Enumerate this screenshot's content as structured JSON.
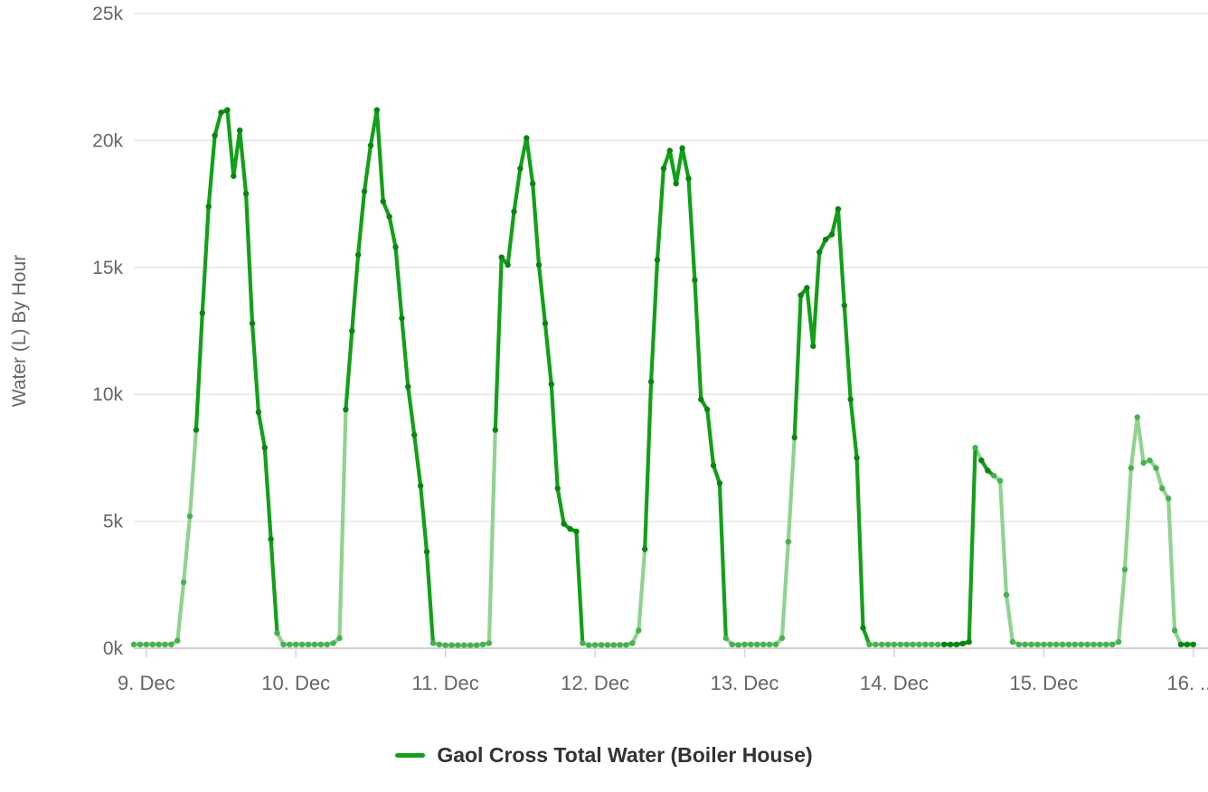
{
  "page": {
    "background": "#ffffff"
  },
  "chart_data": {
    "type": "line",
    "title": "",
    "xlabel": "",
    "ylabel": "Water (L) By Hour",
    "ylim": [
      0,
      25000
    ],
    "y_tick_values": [
      0,
      5000,
      10000,
      15000,
      20000,
      25000
    ],
    "y_tick_labels": [
      "0k",
      "5k",
      "10k",
      "15k",
      "20k",
      "25k"
    ],
    "x_tick_labels": [
      "9. Dec",
      "10. Dec",
      "11. Dec",
      "12. Dec",
      "13. Dec",
      "14. Dec",
      "15. Dec",
      "16. ..."
    ],
    "grid": "horizontal-only",
    "legend_position": "bottom-center",
    "colors": {
      "line_dark": "#12a019",
      "line_light": "#8fd38f",
      "marker_dark": "#0a8510",
      "marker_light": "#46b24e",
      "gridline": "#e6e6e6",
      "axis_line": "#cfcfcf",
      "tick_mark": "#ccd6eb",
      "axis_text": "#666666",
      "legend_text": "#333333"
    },
    "series": [
      {
        "name": "Gaol Cross Total Water (Boiler House)",
        "interval_hours": 1,
        "lead_values": [
          150,
          150
        ],
        "lead_shades": "ll",
        "days": [
          {
            "label": "9. Dec",
            "values": [
              150,
              150,
              150,
              150,
              150,
              300,
              2600,
              5200,
              8600,
              13200,
              17400,
              20200,
              21100,
              21200,
              18600,
              20400,
              17900,
              12800,
              9300,
              7900,
              4300,
              600,
              150,
              150
            ],
            "shades": "lllllllldddddddddddddlll"
          },
          {
            "label": "10. Dec",
            "values": [
              150,
              150,
              150,
              150,
              150,
              150,
              200,
              400,
              9400,
              12500,
              15500,
              18000,
              19800,
              21200,
              17600,
              17000,
              15800,
              13000,
              10300,
              8400,
              6400,
              3800,
              200,
              150
            ],
            "shades": "llllllllddddddddddddddll"
          },
          {
            "label": "11. Dec",
            "values": [
              120,
              120,
              120,
              120,
              120,
              120,
              150,
              200,
              8600,
              15400,
              15100,
              17200,
              18900,
              20100,
              18300,
              15100,
              12800,
              10400,
              6300,
              4900,
              4700,
              4600,
              200,
              120
            ],
            "shades": "llllllllddddddddddddddll"
          },
          {
            "label": "12. Dec",
            "values": [
              130,
              130,
              130,
              130,
              130,
              130,
              200,
              700,
              3900,
              10500,
              15300,
              18900,
              19600,
              18300,
              19700,
              18500,
              14500,
              9800,
              9400,
              7200,
              6500,
              400,
              150,
              130
            ],
            "shades": "lllllllldddddddddddddlll"
          },
          {
            "label": "13. Dec",
            "values": [
              150,
              150,
              150,
              150,
              150,
              150,
              400,
              4200,
              8300,
              13900,
              14200,
              11900,
              15600,
              16100,
              16300,
              17300,
              13500,
              9800,
              7500,
              800,
              150,
              150,
              150,
              150
            ],
            "shades": "llllllllddddddddddddllll"
          },
          {
            "label": "14. Dec",
            "values": [
              150,
              150,
              150,
              150,
              150,
              150,
              150,
              150,
              150,
              150,
              150,
              180,
              250,
              7900,
              7400,
              7000,
              6800,
              6600,
              2100,
              250,
              150,
              150,
              150,
              150
            ],
            "shades": "lllllllldddddlddllllllll"
          },
          {
            "label": "15. Dec",
            "values": [
              150,
              150,
              150,
              150,
              150,
              150,
              150,
              150,
              150,
              150,
              150,
              150,
              250,
              3100,
              7100,
              9100,
              7300,
              7400,
              7100,
              6300,
              5900,
              700,
              150,
              150
            ],
            "shades": "lllllllllllllllllllllldd"
          }
        ],
        "tail_values": [
          150
        ],
        "tail_shades": "d"
      }
    ]
  },
  "legend": {
    "label": "Gaol Cross Total Water (Boiler House)"
  }
}
